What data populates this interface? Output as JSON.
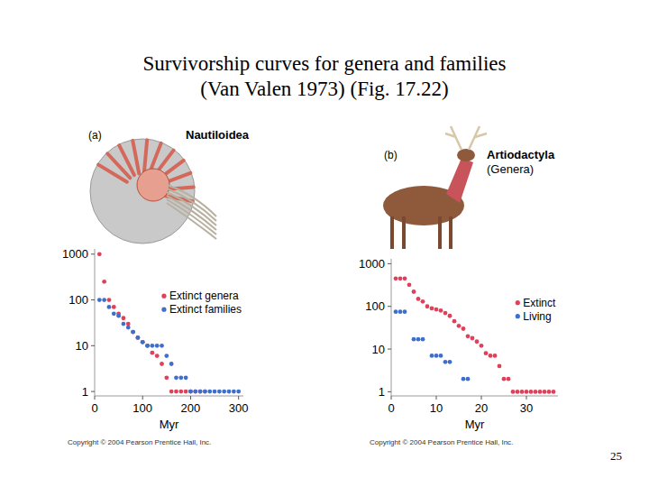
{
  "slide": {
    "title_lines": [
      "Survivorship curves for genera and families",
      "(Van Valen 1973) (Fig. 17.22)"
    ],
    "page_number": 25
  },
  "chart_data": [
    {
      "type": "scatter",
      "panel_label": "(a)",
      "title": "Nautiloidea",
      "x_label": "Myr",
      "source": "Copyright © 2004 Pearson Prentice Hall, Inc.",
      "log": "y",
      "legend": "top-right",
      "marker": "circle",
      "xlim": [
        0,
        310
      ],
      "xticks": [
        0,
        100,
        200,
        300
      ],
      "ylim": [
        0.8,
        1300
      ],
      "yticks": [
        1000,
        100,
        10,
        1
      ],
      "x": [
        10,
        20,
        30,
        40,
        50,
        60,
        70,
        80,
        90,
        100,
        110,
        120,
        130,
        140,
        150,
        160,
        170,
        180,
        190,
        200,
        210,
        220,
        230,
        240,
        250,
        260,
        270,
        280,
        290,
        300
      ],
      "series": [
        {
          "name": "Extinct genera",
          "color": "#e0405a",
          "values": [
            1000,
            250,
            100,
            70,
            50,
            40,
            30,
            20,
            15,
            12,
            10,
            7,
            6,
            4,
            2,
            1,
            1,
            1,
            1,
            1,
            1,
            1,
            1,
            null,
            null,
            null,
            null,
            null,
            null,
            null
          ]
        },
        {
          "name": "Extinct families",
          "color": "#3d6fcf",
          "values": [
            100,
            100,
            70,
            50,
            45,
            30,
            25,
            20,
            15,
            12,
            10,
            10,
            10,
            10,
            6,
            4,
            2,
            2,
            2,
            1,
            1,
            1,
            1,
            1,
            1,
            1,
            1,
            1,
            1,
            1
          ]
        }
      ]
    },
    {
      "type": "scatter",
      "panel_label": "(b)",
      "title": "Artiodactyla",
      "subtitle": "(Genera)",
      "x_label": "Myr",
      "source": "Copyright © 2004 Pearson Prentice Hall, Inc.",
      "log": "y",
      "legend": "top-right",
      "marker": "circle",
      "xlim": [
        0,
        37
      ],
      "xticks": [
        0,
        10,
        20,
        30
      ],
      "ylim": [
        0.8,
        1300
      ],
      "yticks": [
        1000,
        100,
        10,
        1
      ],
      "x": [
        1,
        2,
        3,
        4,
        5,
        6,
        7,
        8,
        9,
        10,
        11,
        12,
        13,
        14,
        15,
        16,
        17,
        18,
        19,
        20,
        21,
        22,
        23,
        24,
        25,
        26,
        27,
        28,
        29,
        30,
        31,
        32,
        33,
        34,
        35,
        36
      ],
      "series": [
        {
          "name": "Extinct",
          "color": "#e0405a",
          "values": [
            450,
            450,
            450,
            320,
            220,
            150,
            130,
            100,
            90,
            85,
            80,
            70,
            60,
            45,
            35,
            30,
            20,
            18,
            15,
            12,
            8,
            7,
            7,
            4,
            2,
            2,
            1,
            1,
            1,
            1,
            1,
            1,
            1,
            1,
            1,
            1
          ]
        },
        {
          "name": "Living",
          "color": "#3d6fcf",
          "values": [
            75,
            75,
            75,
            null,
            17,
            17,
            17,
            null,
            7,
            7,
            7,
            5,
            5,
            null,
            null,
            2,
            2,
            null,
            null,
            null,
            null,
            null,
            null,
            null,
            null,
            null,
            null,
            null,
            null,
            null,
            null,
            null,
            null,
            null,
            null,
            null
          ]
        }
      ]
    }
  ]
}
